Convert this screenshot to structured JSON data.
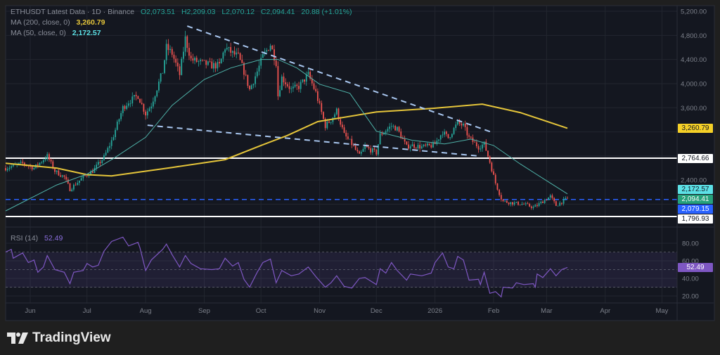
{
  "header": {
    "symbol": "ETHUSDT Latest Data · 1D · Binance",
    "open": "O2,073.51",
    "high": "H2,209.03",
    "low": "L2,070.12",
    "close": "C2,094.41",
    "change": "20.88 (+1.01%)",
    "ma200_label": "MA (200, close, 0)",
    "ma200_value": "3,260.79",
    "ma50_label": "MA (50, close, 0)",
    "ma50_value": "2,172.57",
    "rsi_label": "RSI (14)",
    "rsi_value": "52.49"
  },
  "badges": {
    "ma200": "3,260.79",
    "resistance": "2,764.66",
    "ma50": "2,172.57",
    "last": "2,094.41",
    "level_blue": "2,079.15",
    "support": "1,796.93",
    "rsi": "52.49"
  },
  "colors": {
    "up": "#26a69a",
    "down": "#ef5350",
    "ma200": "#e5c53a",
    "ma50": "#4fb3a9",
    "rsi": "#7e57c2",
    "trendline": "#a9c7f0",
    "level_blue": "#2962ff",
    "level_white": "#ffffff"
  },
  "brand": "TradingView",
  "chart_data": [
    {
      "type": "candlestick",
      "title": "ETHUSDT Latest Data · 1D · Binance",
      "price_ticks": [
        "5,200.00",
        "4,800.00",
        "4,400.00",
        "4,000.00",
        "3,600.00",
        "2,400.00"
      ],
      "time_ticks": [
        {
          "label": "Jun",
          "date": "2025-06-01"
        },
        {
          "label": "Jul",
          "date": "2025-07-01"
        },
        {
          "label": "Aug",
          "date": "2025-08-01"
        },
        {
          "label": "Sep",
          "date": "2025-09-01"
        },
        {
          "label": "Oct",
          "date": "2025-10-01"
        },
        {
          "label": "Nov",
          "date": "2025-11-01"
        },
        {
          "label": "Dec",
          "date": "2025-12-01"
        },
        {
          "label": "2026",
          "date": "2026-01-01"
        },
        {
          "label": "Feb",
          "date": "2026-02-01"
        },
        {
          "label": "Mar",
          "date": "2026-03-01"
        },
        {
          "label": "Apr",
          "date": "2026-04-01"
        },
        {
          "label": "May",
          "date": "2026-05-01"
        }
      ],
      "ylim": [
        1700,
        5250
      ],
      "grid": true,
      "close_path": [
        [
          "2025-05-19",
          2600
        ],
        [
          "2025-05-28",
          2680
        ],
        [
          "2025-06-03",
          2600
        ],
        [
          "2025-06-10",
          2800
        ],
        [
          "2025-06-14",
          2550
        ],
        [
          "2025-06-19",
          2450
        ],
        [
          "2025-06-22",
          2250
        ],
        [
          "2025-06-29",
          2450
        ],
        [
          "2025-07-04",
          2550
        ],
        [
          "2025-07-10",
          2780
        ],
        [
          "2025-07-14",
          3050
        ],
        [
          "2025-07-20",
          3600
        ],
        [
          "2025-07-23",
          3700
        ],
        [
          "2025-07-28",
          3800
        ],
        [
          "2025-08-01",
          3500
        ],
        [
          "2025-08-04",
          3650
        ],
        [
          "2025-08-10",
          4200
        ],
        [
          "2025-08-12",
          4600
        ],
        [
          "2025-08-15",
          4500
        ],
        [
          "2025-08-19",
          4150
        ],
        [
          "2025-08-22",
          4750
        ],
        [
          "2025-08-25",
          4400
        ],
        [
          "2025-08-30",
          4350
        ],
        [
          "2025-09-05",
          4300
        ],
        [
          "2025-09-09",
          4300
        ],
        [
          "2025-09-12",
          4600
        ],
        [
          "2025-09-16",
          4500
        ],
        [
          "2025-09-19",
          4450
        ],
        [
          "2025-09-22",
          4200
        ],
        [
          "2025-09-25",
          3900
        ],
        [
          "2025-09-29",
          4200
        ],
        [
          "2025-10-02",
          4450
        ],
        [
          "2025-10-06",
          4650
        ],
        [
          "2025-10-09",
          4350
        ],
        [
          "2025-10-10",
          3800
        ],
        [
          "2025-10-12",
          4100
        ],
        [
          "2025-10-17",
          3900
        ],
        [
          "2025-10-21",
          3950
        ],
        [
          "2025-10-26",
          4150
        ],
        [
          "2025-10-30",
          3850
        ],
        [
          "2025-11-04",
          3300
        ],
        [
          "2025-11-07",
          3400
        ],
        [
          "2025-11-10",
          3550
        ],
        [
          "2025-11-14",
          3150
        ],
        [
          "2025-11-18",
          3000
        ],
        [
          "2025-11-22",
          2800
        ],
        [
          "2025-11-25",
          2950
        ],
        [
          "2025-12-01",
          2850
        ],
        [
          "2025-12-03",
          3150
        ],
        [
          "2025-12-09",
          3300
        ],
        [
          "2025-12-12",
          3250
        ],
        [
          "2025-12-17",
          2950
        ],
        [
          "2025-12-19",
          2980
        ],
        [
          "2025-12-25",
          2950
        ],
        [
          "2025-12-30",
          2970
        ],
        [
          "2026-01-01",
          3000
        ],
        [
          "2026-01-05",
          3200
        ],
        [
          "2026-01-08",
          3100
        ],
        [
          "2026-01-13",
          3350
        ],
        [
          "2026-01-16",
          3300
        ],
        [
          "2026-01-19",
          3100
        ],
        [
          "2026-01-24",
          2950
        ],
        [
          "2026-01-27",
          3000
        ],
        [
          "2026-01-30",
          2700
        ],
        [
          "2026-02-02",
          2350
        ],
        [
          "2026-02-05",
          2100
        ],
        [
          "2026-02-06",
          2050
        ],
        [
          "2026-02-11",
          2020
        ],
        [
          "2026-02-17",
          2000
        ],
        [
          "2026-02-22",
          1950
        ],
        [
          "2026-02-24",
          1980
        ],
        [
          "2026-02-27",
          2050
        ],
        [
          "2026-03-03",
          2130
        ],
        [
          "2026-03-06",
          1980
        ],
        [
          "2026-03-09",
          2040
        ],
        [
          "2026-03-12",
          2094.41
        ]
      ],
      "series": [
        {
          "name": "MA (200, close, 0)",
          "points": [
            [
              "2025-05-19",
              2680
            ],
            [
              "2025-06-15",
              2600
            ],
            [
              "2025-07-01",
              2490
            ],
            [
              "2025-07-14",
              2470
            ],
            [
              "2025-08-15",
              2610
            ],
            [
              "2025-09-12",
              2740
            ],
            [
              "2025-10-01",
              2975
            ],
            [
              "2025-10-15",
              3140
            ],
            [
              "2025-10-31",
              3370
            ],
            [
              "2025-12-01",
              3530
            ],
            [
              "2025-12-31",
              3590
            ],
            [
              "2026-01-26",
              3660
            ],
            [
              "2026-02-15",
              3520
            ],
            [
              "2026-03-12",
              3260.79
            ]
          ]
        },
        {
          "name": "MA (50, close, 0)",
          "points": [
            [
              "2025-05-19",
              1890
            ],
            [
              "2025-06-15",
              2320
            ],
            [
              "2025-07-01",
              2500
            ],
            [
              "2025-07-15",
              2760
            ],
            [
              "2025-08-01",
              3110
            ],
            [
              "2025-08-15",
              3640
            ],
            [
              "2025-09-01",
              4070
            ],
            [
              "2025-09-15",
              4260
            ],
            [
              "2025-10-01",
              4400
            ],
            [
              "2025-10-10",
              4400
            ],
            [
              "2025-10-20",
              4260
            ],
            [
              "2025-11-01",
              3990
            ],
            [
              "2025-11-17",
              3840
            ],
            [
              "2025-12-01",
              3210
            ],
            [
              "2025-12-20",
              3060
            ],
            [
              "2026-01-06",
              3000
            ],
            [
              "2026-01-20",
              3080
            ],
            [
              "2026-02-01",
              2975
            ],
            [
              "2026-02-15",
              2670
            ],
            [
              "2026-03-01",
              2390
            ],
            [
              "2026-03-12",
              2172.57
            ]
          ]
        }
      ],
      "trendlines": [
        {
          "from": [
            "2025-08-23",
            4955
          ],
          "to": [
            "2026-01-31",
            3195
          ]
        },
        {
          "from": [
            "2025-08-02",
            3310
          ],
          "to": [
            "2026-01-24",
            2800
          ]
        }
      ],
      "levels": [
        {
          "value": 2764.66,
          "style": "solid",
          "color": "#ffffff"
        },
        {
          "value": 1796.93,
          "style": "solid",
          "color": "#ffffff"
        },
        {
          "value": 2079.15,
          "style": "dashed",
          "color": "#2962ff"
        }
      ]
    },
    {
      "type": "line",
      "title": "RSI (14)",
      "ticks": [
        "80.00",
        "60.00",
        "40.00",
        "20.00"
      ],
      "ylim": [
        10,
        95
      ],
      "band": [
        30,
        70
      ],
      "values": [
        [
          "2025-05-19",
          70
        ],
        [
          "2025-05-22",
          73
        ],
        [
          "2025-05-23",
          63
        ],
        [
          "2025-05-28",
          69
        ],
        [
          "2025-05-31",
          58
        ],
        [
          "2025-06-03",
          61
        ],
        [
          "2025-06-05",
          47
        ],
        [
          "2025-06-08",
          53
        ],
        [
          "2025-06-10",
          66
        ],
        [
          "2025-06-14",
          50
        ],
        [
          "2025-06-19",
          47
        ],
        [
          "2025-06-22",
          34
        ],
        [
          "2025-06-24",
          47
        ],
        [
          "2025-06-29",
          49
        ],
        [
          "2025-07-01",
          57
        ],
        [
          "2025-07-04",
          53
        ],
        [
          "2025-07-07",
          55
        ],
        [
          "2025-07-10",
          71
        ],
        [
          "2025-07-14",
          82
        ],
        [
          "2025-07-20",
          87
        ],
        [
          "2025-07-23",
          77
        ],
        [
          "2025-07-28",
          81
        ],
        [
          "2025-07-29",
          75
        ],
        [
          "2025-08-01",
          49
        ],
        [
          "2025-08-04",
          61
        ],
        [
          "2025-08-10",
          73
        ],
        [
          "2025-08-12",
          79
        ],
        [
          "2025-08-15",
          67
        ],
        [
          "2025-08-19",
          53
        ],
        [
          "2025-08-22",
          66
        ],
        [
          "2025-08-25",
          57
        ],
        [
          "2025-08-30",
          51
        ],
        [
          "2025-09-05",
          50
        ],
        [
          "2025-09-09",
          51
        ],
        [
          "2025-09-12",
          63
        ],
        [
          "2025-09-16",
          54
        ],
        [
          "2025-09-19",
          58
        ],
        [
          "2025-09-22",
          39
        ],
        [
          "2025-09-25",
          30
        ],
        [
          "2025-09-29",
          47
        ],
        [
          "2025-10-02",
          58
        ],
        [
          "2025-10-06",
          62
        ],
        [
          "2025-10-09",
          35
        ],
        [
          "2025-10-12",
          49
        ],
        [
          "2025-10-17",
          43
        ],
        [
          "2025-10-21",
          45
        ],
        [
          "2025-10-26",
          53
        ],
        [
          "2025-10-30",
          42
        ],
        [
          "2025-11-04",
          30
        ],
        [
          "2025-11-07",
          35
        ],
        [
          "2025-11-10",
          43
        ],
        [
          "2025-11-14",
          31
        ],
        [
          "2025-11-18",
          29
        ],
        [
          "2025-11-22",
          40
        ],
        [
          "2025-11-25",
          41
        ],
        [
          "2025-12-01",
          33
        ],
        [
          "2025-12-03",
          51
        ],
        [
          "2025-12-06",
          46
        ],
        [
          "2025-12-09",
          58
        ],
        [
          "2025-12-12",
          49
        ],
        [
          "2025-12-17",
          38
        ],
        [
          "2025-12-19",
          45
        ],
        [
          "2025-12-25",
          43
        ],
        [
          "2025-12-30",
          46
        ],
        [
          "2026-01-01",
          58
        ],
        [
          "2026-01-05",
          69
        ],
        [
          "2026-01-08",
          53
        ],
        [
          "2026-01-11",
          51
        ],
        [
          "2026-01-13",
          65
        ],
        [
          "2026-01-16",
          61
        ],
        [
          "2026-01-19",
          38
        ],
        [
          "2026-01-24",
          39
        ],
        [
          "2026-01-25",
          33
        ],
        [
          "2026-01-27",
          47
        ],
        [
          "2026-01-30",
          23
        ],
        [
          "2026-02-02",
          25
        ],
        [
          "2026-02-05",
          19
        ],
        [
          "2026-02-06",
          30
        ],
        [
          "2026-02-11",
          29
        ],
        [
          "2026-02-13",
          35
        ],
        [
          "2026-02-17",
          33
        ],
        [
          "2026-02-22",
          34
        ],
        [
          "2026-02-23",
          30
        ],
        [
          "2026-02-24",
          45
        ],
        [
          "2026-02-27",
          41
        ],
        [
          "2026-03-03",
          51
        ],
        [
          "2026-03-06",
          43
        ],
        [
          "2026-03-09",
          50
        ],
        [
          "2026-03-12",
          52.49
        ]
      ]
    }
  ]
}
